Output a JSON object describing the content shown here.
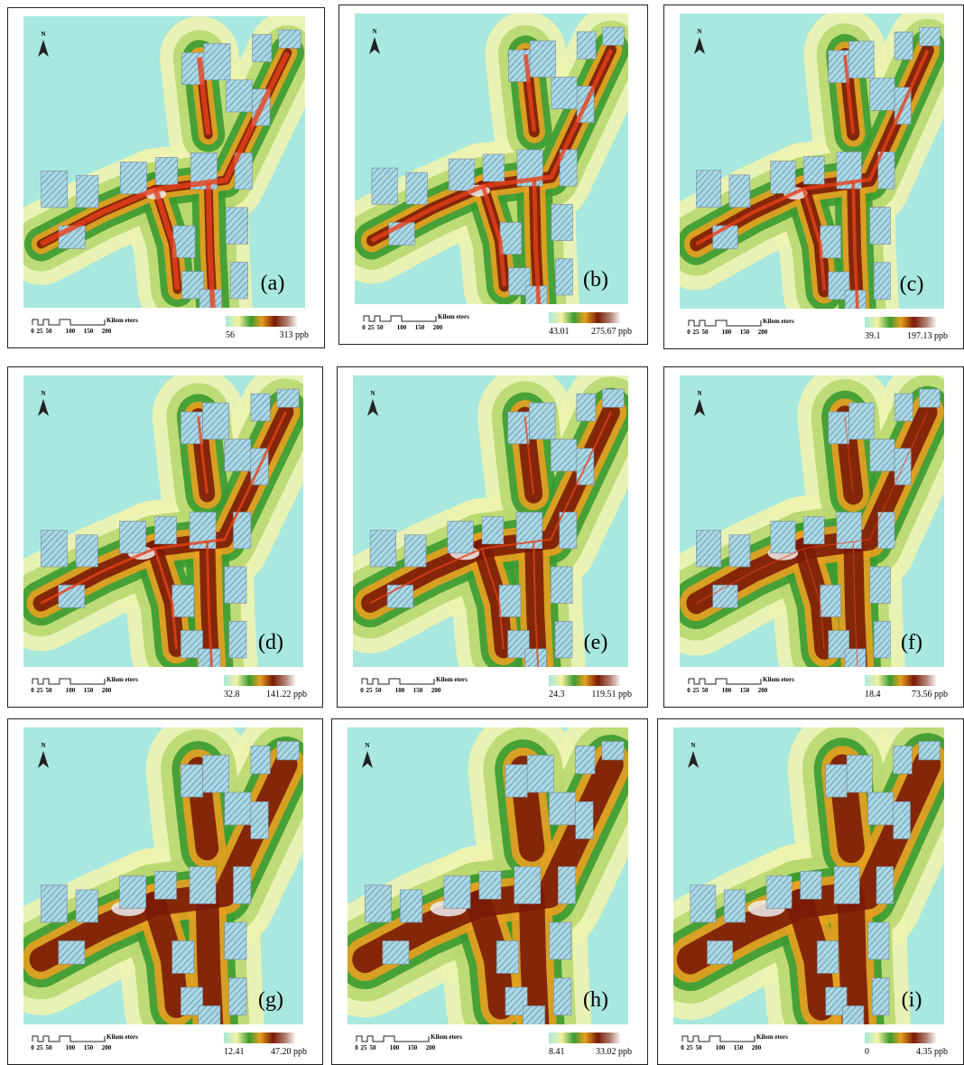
{
  "north": "N",
  "scale_bar": {
    "ticks": [
      "0",
      "25",
      "50",
      "100",
      "150",
      "200"
    ],
    "unit": "Kilom eters"
  },
  "panels": [
    {
      "label": "(a)",
      "legend_min": "56",
      "legend_max": "313 ppb"
    },
    {
      "label": "(b)",
      "legend_min": "43.01",
      "legend_max": "275.67 ppb"
    },
    {
      "label": "(c)",
      "legend_min": "39.1",
      "legend_max": "197.13 ppb"
    },
    {
      "label": "(d)",
      "legend_min": "32.8",
      "legend_max": "141.22 ppb"
    },
    {
      "label": "(e)",
      "legend_min": "24.3",
      "legend_max": "119.51 ppb"
    },
    {
      "label": "(f)",
      "legend_min": "18.4",
      "legend_max": "73.56 ppb"
    },
    {
      "label": "(g)",
      "legend_min": "12.41",
      "legend_max": "47.20 ppb"
    },
    {
      "label": "(h)",
      "legend_min": "8.41",
      "legend_max": "33.02 ppb"
    },
    {
      "label": "(i)",
      "legend_min": "0",
      "legend_max": "4.35 ppb"
    }
  ]
}
